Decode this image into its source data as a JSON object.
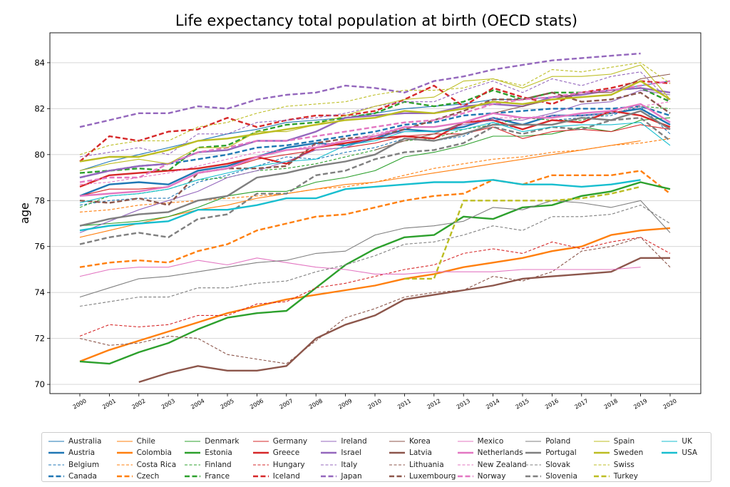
{
  "chart_data": {
    "type": "line",
    "title": "Life expectancy total population at birth (OECD stats)",
    "xlabel": "",
    "ylabel": "age",
    "ylim": [
      69.6,
      85.3
    ],
    "yticks": [
      70,
      72,
      74,
      76,
      78,
      80,
      82,
      84
    ],
    "grid": "horizontal",
    "legend_position": "bottom",
    "categories": [
      "2000",
      "2001",
      "2002",
      "2003",
      "2004",
      "2005",
      "2006",
      "2007",
      "2008",
      "2009",
      "2010",
      "2011",
      "2012",
      "2013",
      "2014",
      "2015",
      "2016",
      "2017",
      "2018",
      "2019",
      "2020"
    ],
    "series": [
      {
        "name": "Australia",
        "color": "#1f77b4",
        "style": "thin",
        "values": [
          79.3,
          79.7,
          80.0,
          80.3,
          80.6,
          80.9,
          81.1,
          81.4,
          81.5,
          81.6,
          81.8,
          82.0,
          82.1,
          82.2,
          82.4,
          82.4,
          82.5,
          82.6,
          82.8,
          83.0,
          83.2
        ]
      },
      {
        "name": "Austria",
        "color": "#1f77b4",
        "style": "thick",
        "values": [
          78.2,
          78.7,
          78.8,
          78.7,
          79.3,
          79.5,
          79.9,
          80.3,
          80.5,
          80.4,
          80.7,
          81.1,
          81.0,
          81.2,
          81.6,
          81.3,
          81.7,
          81.7,
          81.8,
          82.0,
          81.3
        ]
      },
      {
        "name": "Belgium",
        "color": "#1f77b4",
        "style": "thin-dashed",
        "values": [
          77.8,
          78.0,
          78.1,
          78.1,
          78.8,
          79.1,
          79.5,
          79.9,
          79.8,
          80.1,
          80.3,
          80.7,
          80.6,
          80.8,
          81.4,
          81.1,
          81.5,
          81.6,
          81.7,
          82.1,
          80.9
        ]
      },
      {
        "name": "Canada",
        "color": "#1f77b4",
        "style": "thick-dashed",
        "values": [
          79.0,
          79.3,
          79.5,
          79.6,
          79.8,
          80.0,
          80.3,
          80.4,
          80.6,
          80.8,
          81.0,
          81.3,
          81.4,
          81.7,
          81.8,
          81.9,
          82.0,
          82.0,
          82.0,
          82.1,
          81.7
        ]
      },
      {
        "name": "Chile",
        "color": "#ff7f0e",
        "style": "thin",
        "values": [
          76.4,
          76.7,
          77.0,
          77.3,
          77.6,
          77.8,
          78.1,
          78.3,
          78.5,
          78.7,
          78.8,
          79.0,
          79.2,
          79.4,
          79.6,
          79.8,
          80.0,
          80.2,
          80.4,
          80.6,
          null
        ]
      },
      {
        "name": "Colombia",
        "color": "#ff7f0e",
        "style": "thick",
        "values": [
          71.0,
          71.5,
          71.9,
          72.3,
          72.7,
          73.1,
          73.4,
          73.7,
          73.9,
          74.1,
          74.3,
          74.6,
          74.8,
          75.1,
          75.3,
          75.5,
          75.8,
          76.0,
          76.5,
          76.7,
          76.8
        ]
      },
      {
        "name": "Costa Rica",
        "color": "#ff7f0e",
        "style": "thin-dashed",
        "values": [
          77.5,
          77.6,
          77.8,
          77.9,
          78.0,
          78.1,
          78.2,
          78.3,
          78.5,
          78.6,
          78.8,
          79.1,
          79.4,
          79.6,
          79.8,
          79.9,
          80.1,
          80.2,
          80.4,
          80.5,
          80.7
        ]
      },
      {
        "name": "Czech",
        "color": "#ff7f0e",
        "style": "thick-dashed",
        "values": [
          75.1,
          75.3,
          75.4,
          75.3,
          75.8,
          76.1,
          76.7,
          77.0,
          77.3,
          77.4,
          77.7,
          78.0,
          78.2,
          78.3,
          78.9,
          78.7,
          79.1,
          79.1,
          79.1,
          79.3,
          78.3
        ]
      },
      {
        "name": "Denmark",
        "color": "#2ca02c",
        "style": "thin",
        "values": [
          76.9,
          77.0,
          77.1,
          77.3,
          77.7,
          78.2,
          78.4,
          78.4,
          78.8,
          79.0,
          79.3,
          79.9,
          80.1,
          80.4,
          80.8,
          80.8,
          80.9,
          81.2,
          81.0,
          81.5,
          81.6
        ]
      },
      {
        "name": "Estonia",
        "color": "#2ca02c",
        "style": "thick",
        "values": [
          71.0,
          70.9,
          71.4,
          71.8,
          72.4,
          72.9,
          73.1,
          73.2,
          74.2,
          75.2,
          75.9,
          76.4,
          76.5,
          77.3,
          77.2,
          77.7,
          77.8,
          78.2,
          78.4,
          78.8,
          78.5
        ]
      },
      {
        "name": "Finland",
        "color": "#2ca02c",
        "style": "thin-dashed",
        "values": [
          77.7,
          78.2,
          78.3,
          78.5,
          78.9,
          79.0,
          79.3,
          79.4,
          79.6,
          79.9,
          80.2,
          80.6,
          80.7,
          81.1,
          81.3,
          81.6,
          81.5,
          81.5,
          81.8,
          82.1,
          82.0
        ]
      },
      {
        "name": "France",
        "color": "#2ca02c",
        "style": "thick-dashed",
        "values": [
          79.2,
          79.3,
          79.4,
          79.3,
          80.3,
          80.4,
          81.0,
          81.3,
          81.4,
          81.6,
          81.8,
          82.3,
          82.1,
          82.3,
          82.8,
          82.4,
          82.7,
          82.7,
          82.8,
          82.9,
          82.3
        ]
      },
      {
        "name": "Germany",
        "color": "#d62728",
        "style": "thin",
        "values": [
          78.2,
          78.5,
          78.5,
          78.6,
          79.2,
          79.4,
          79.8,
          80.0,
          80.2,
          80.3,
          80.5,
          80.8,
          80.9,
          80.9,
          81.2,
          80.7,
          81.0,
          81.1,
          81.0,
          81.3,
          81.1
        ]
      },
      {
        "name": "Greece",
        "color": "#d62728",
        "style": "thick",
        "values": [
          78.6,
          79.1,
          79.2,
          79.3,
          79.4,
          79.6,
          79.9,
          79.6,
          80.3,
          80.5,
          80.7,
          80.8,
          80.7,
          81.4,
          81.5,
          81.1,
          81.5,
          81.4,
          81.9,
          81.7,
          81.2
        ]
      },
      {
        "name": "Hungary",
        "color": "#d62728",
        "style": "thin-dashed",
        "values": [
          72.1,
          72.6,
          72.5,
          72.6,
          73.0,
          73.0,
          73.5,
          73.6,
          74.2,
          74.4,
          74.7,
          75.0,
          75.2,
          75.7,
          75.9,
          75.7,
          76.2,
          75.9,
          76.2,
          76.4,
          75.7
        ]
      },
      {
        "name": "Iceland",
        "color": "#d62728",
        "style": "thick-dashed",
        "values": [
          79.7,
          80.8,
          80.6,
          81.0,
          81.1,
          81.6,
          81.2,
          81.5,
          81.7,
          81.7,
          81.9,
          82.4,
          83.0,
          82.1,
          82.9,
          82.5,
          82.2,
          82.7,
          82.9,
          83.2,
          83.1
        ]
      },
      {
        "name": "Ireland",
        "color": "#9467bd",
        "style": "thin",
        "values": [
          76.6,
          77.1,
          77.6,
          78.0,
          78.4,
          79.0,
          79.3,
          79.7,
          80.2,
          80.3,
          80.8,
          81.0,
          81.0,
          81.3,
          81.5,
          81.5,
          81.8,
          82.2,
          82.3,
          82.8,
          82.6
        ]
      },
      {
        "name": "Israel",
        "color": "#9467bd",
        "style": "thick",
        "values": [
          79.0,
          79.3,
          79.5,
          79.6,
          80.1,
          80.2,
          80.6,
          80.6,
          81.0,
          81.6,
          81.7,
          81.8,
          81.8,
          82.1,
          82.2,
          82.1,
          82.5,
          82.6,
          82.8,
          82.9,
          82.7
        ]
      },
      {
        "name": "Italy",
        "color": "#9467bd",
        "style": "thin-dashed",
        "values": [
          79.9,
          80.1,
          80.3,
          80.0,
          80.9,
          80.9,
          81.4,
          81.5,
          81.6,
          81.8,
          82.1,
          82.3,
          82.3,
          82.8,
          83.2,
          82.7,
          83.3,
          83.0,
          83.4,
          83.6,
          82.3
        ]
      },
      {
        "name": "Japan",
        "color": "#9467bd",
        "style": "thick-dashed",
        "values": [
          81.2,
          81.5,
          81.8,
          81.8,
          82.1,
          82.0,
          82.4,
          82.6,
          82.7,
          83.0,
          82.9,
          82.7,
          83.2,
          83.4,
          83.7,
          83.9,
          84.1,
          84.2,
          84.3,
          84.4,
          null
        ]
      },
      {
        "name": "Korea",
        "color": "#8c564b",
        "style": "thin",
        "values": [
          null,
          null,
          null,
          null,
          null,
          null,
          null,
          null,
          null,
          null,
          80.2,
          80.6,
          80.9,
          81.4,
          81.8,
          82.1,
          82.4,
          82.7,
          82.7,
          83.3,
          83.5
        ]
      },
      {
        "name": "Latvia",
        "color": "#8c564b",
        "style": "thick",
        "values": [
          null,
          null,
          70.1,
          70.5,
          70.8,
          70.6,
          70.6,
          70.8,
          72.0,
          72.6,
          73.0,
          73.7,
          73.9,
          74.1,
          74.3,
          74.6,
          74.7,
          74.8,
          74.9,
          75.5,
          75.5
        ]
      },
      {
        "name": "Lithuania",
        "color": "#8c564b",
        "style": "thin-dashed",
        "values": [
          72.0,
          71.7,
          71.8,
          72.1,
          72.0,
          71.3,
          71.1,
          70.9,
          71.9,
          72.9,
          73.3,
          73.8,
          74.0,
          74.1,
          74.7,
          74.5,
          74.9,
          75.8,
          76.0,
          76.4,
          75.1
        ]
      },
      {
        "name": "Luxembourg",
        "color": "#8c564b",
        "style": "thick-dashed",
        "values": [
          78.0,
          77.9,
          78.1,
          77.8,
          79.2,
          79.4,
          79.4,
          79.5,
          80.5,
          80.7,
          80.8,
          81.1,
          81.5,
          81.9,
          82.4,
          82.4,
          82.7,
          82.3,
          82.4,
          82.7,
          81.8
        ]
      },
      {
        "name": "Mexico",
        "color": "#e377c2",
        "style": "thin",
        "values": [
          74.7,
          75.0,
          75.1,
          75.1,
          75.4,
          75.2,
          75.5,
          75.3,
          75.1,
          75.0,
          74.8,
          74.8,
          74.9,
          74.9,
          74.9,
          75.0,
          75.0,
          75.0,
          75.0,
          75.1,
          null
        ]
      },
      {
        "name": "Netherlands",
        "color": "#e377c2",
        "style": "thick",
        "values": [
          78.2,
          78.3,
          78.4,
          78.6,
          79.2,
          79.4,
          79.9,
          80.2,
          80.3,
          80.6,
          80.8,
          81.2,
          81.2,
          81.4,
          81.8,
          81.6,
          81.6,
          81.8,
          81.9,
          82.2,
          81.4
        ]
      },
      {
        "name": "New Zealand",
        "color": "#e377c2",
        "style": "thin-dashed",
        "values": [
          78.7,
          78.8,
          79.0,
          79.2,
          79.5,
          79.8,
          80.1,
          80.2,
          80.4,
          80.6,
          80.9,
          81.2,
          81.2,
          81.4,
          81.6,
          81.6,
          81.7,
          81.7,
          81.8,
          82.1,
          82.3
        ]
      },
      {
        "name": "Norway",
        "color": "#e377c2",
        "style": "thick-dashed",
        "values": [
          78.8,
          79.0,
          79.0,
          79.6,
          80.1,
          80.3,
          80.6,
          80.6,
          80.8,
          81.0,
          81.2,
          81.4,
          81.5,
          81.8,
          82.2,
          82.4,
          82.5,
          82.7,
          82.8,
          83.0,
          83.2
        ]
      },
      {
        "name": "Poland",
        "color": "#7f7f7f",
        "style": "thin",
        "values": [
          73.8,
          74.2,
          74.6,
          74.7,
          74.9,
          75.1,
          75.3,
          75.4,
          75.7,
          75.8,
          76.5,
          76.8,
          76.9,
          77.1,
          77.7,
          77.6,
          78.0,
          77.9,
          77.7,
          78.0,
          76.6
        ]
      },
      {
        "name": "Portugal",
        "color": "#7f7f7f",
        "style": "thick",
        "values": [
          76.9,
          77.2,
          77.4,
          77.5,
          78.0,
          78.2,
          79.0,
          79.2,
          79.5,
          79.7,
          80.0,
          80.7,
          80.6,
          80.9,
          81.3,
          81.3,
          81.3,
          81.6,
          81.5,
          81.9,
          81.1
        ]
      },
      {
        "name": "Slovak",
        "color": "#7f7f7f",
        "style": "thin-dashed",
        "values": [
          73.4,
          73.6,
          73.8,
          73.8,
          74.2,
          74.2,
          74.4,
          74.5,
          74.9,
          75.2,
          75.6,
          76.1,
          76.2,
          76.5,
          76.9,
          76.7,
          77.3,
          77.3,
          77.4,
          77.8,
          77.0
        ]
      },
      {
        "name": "Slovenia",
        "color": "#7f7f7f",
        "style": "thick-dashed",
        "values": [
          76.1,
          76.4,
          76.6,
          76.4,
          77.2,
          77.4,
          78.3,
          78.3,
          79.1,
          79.3,
          79.8,
          80.1,
          80.2,
          80.5,
          81.2,
          80.9,
          81.2,
          81.1,
          81.5,
          81.6,
          80.6
        ]
      },
      {
        "name": "Spain",
        "color": "#bcbd22",
        "style": "thin",
        "values": [
          79.3,
          79.6,
          79.8,
          79.6,
          80.3,
          80.3,
          81.0,
          81.0,
          81.3,
          81.7,
          82.1,
          82.4,
          82.5,
          83.2,
          83.3,
          82.9,
          83.4,
          83.4,
          83.5,
          83.9,
          82.4
        ]
      },
      {
        "name": "Sweden",
        "color": "#bcbd22",
        "style": "thick",
        "values": [
          79.7,
          79.9,
          79.9,
          80.2,
          80.6,
          80.7,
          80.9,
          81.1,
          81.3,
          81.5,
          81.6,
          81.9,
          81.8,
          82.0,
          82.3,
          82.2,
          82.4,
          82.5,
          82.6,
          83.2,
          82.4
        ]
      },
      {
        "name": "Swiss",
        "color": "#bcbd22",
        "style": "thin-dashed",
        "values": [
          80.0,
          80.4,
          80.6,
          80.6,
          81.2,
          81.4,
          81.8,
          82.1,
          82.2,
          82.3,
          82.6,
          82.8,
          82.8,
          82.9,
          83.3,
          83.0,
          83.7,
          83.6,
          83.8,
          84.0,
          83.1
        ]
      },
      {
        "name": "Turkey",
        "color": "#bcbd22",
        "style": "thick-dashed",
        "values": [
          null,
          null,
          null,
          null,
          null,
          null,
          null,
          null,
          null,
          null,
          null,
          74.6,
          74.6,
          78.0,
          78.0,
          78.0,
          78.0,
          78.1,
          78.3,
          78.6,
          null
        ]
      },
      {
        "name": "UK",
        "color": "#17becf",
        "style": "thin",
        "values": [
          77.9,
          78.2,
          78.3,
          78.5,
          78.9,
          79.2,
          79.5,
          79.7,
          79.8,
          80.4,
          80.6,
          81.0,
          81.0,
          81.1,
          81.4,
          81.0,
          81.2,
          81.3,
          81.3,
          81.4,
          80.4
        ]
      },
      {
        "name": "USA",
        "color": "#17becf",
        "style": "thick",
        "values": [
          76.7,
          76.9,
          77.0,
          77.1,
          77.6,
          77.6,
          77.8,
          78.1,
          78.1,
          78.5,
          78.6,
          78.7,
          78.8,
          78.8,
          78.9,
          78.7,
          78.7,
          78.6,
          78.7,
          78.9,
          null
        ]
      }
    ]
  }
}
